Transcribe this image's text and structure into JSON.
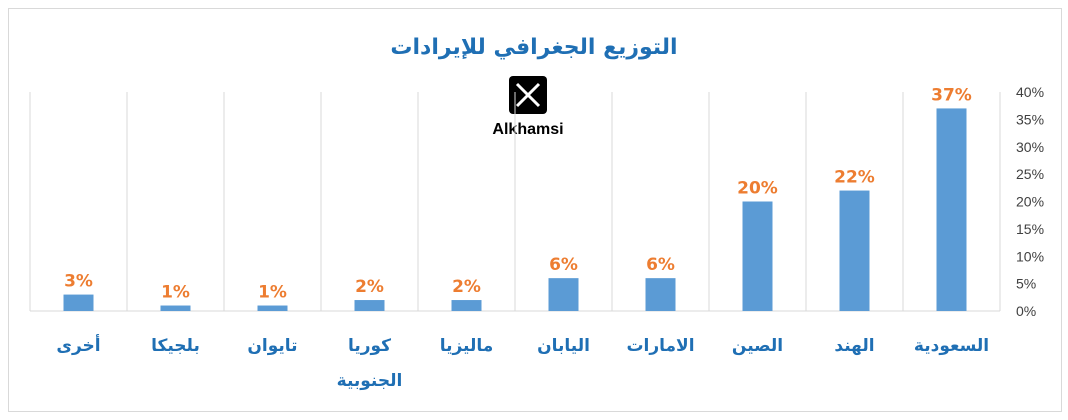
{
  "chart_data": {
    "type": "bar",
    "title": "التوزيع الجغرافي للإيرادات",
    "categories": [
      "السعودية",
      "الهند",
      "الصين",
      "الامارات",
      "اليابان",
      "ماليزيا",
      "كوريا الجنوبية",
      "تايوان",
      "بلجيكا",
      "أخرى"
    ],
    "series": [
      {
        "values": [
          37,
          22,
          20,
          6,
          6,
          2,
          2,
          1,
          1,
          3
        ],
        "labels": [
          "37%",
          "22%",
          "20%",
          "6%",
          "6%",
          "2%",
          "2%",
          "1%",
          "1%",
          "3%"
        ]
      }
    ],
    "ylim": [
      0,
      40
    ],
    "yticks": [
      "0%",
      "5%",
      "10%",
      "15%",
      "20%",
      "25%",
      "30%",
      "35%",
      "40%"
    ],
    "y_axis_position": "right",
    "grid": "vertical category separators",
    "bar_color": "#5b9bd5",
    "data_label_color": "#ed7d31",
    "category_label_color": "#1f6fb4"
  },
  "watermark": {
    "icon": "x-logo-icon",
    "name": "Alkhamsi"
  }
}
